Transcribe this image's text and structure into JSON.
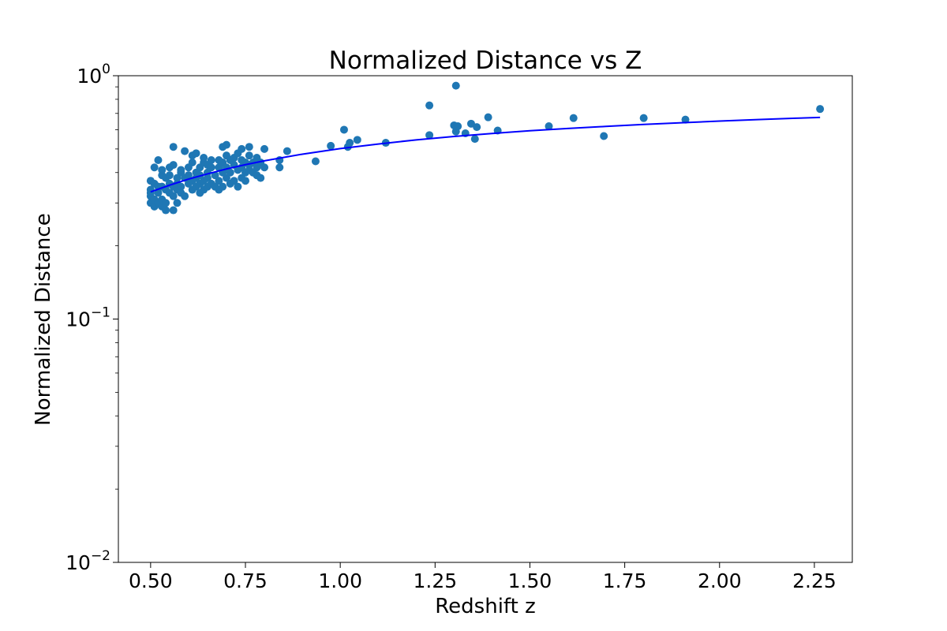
{
  "chart_data": {
    "type": "scatter",
    "title": "Normalized Distance vs Z",
    "xlabel": "Redshift z",
    "ylabel": "Normalized Distance",
    "xlim": [
      0.415,
      2.35
    ],
    "ylim": [
      0.01,
      1.0
    ],
    "y_scale": "log",
    "grid": false,
    "x_ticks": [
      0.5,
      0.75,
      1.0,
      1.25,
      1.5,
      1.75,
      2.0,
      2.25
    ],
    "x_tick_labels": [
      "0.50",
      "0.75",
      "1.00",
      "1.25",
      "1.50",
      "1.75",
      "2.00",
      "2.25"
    ],
    "y_ticks": [
      {
        "value": 1.0,
        "base": "10",
        "exp": "0"
      },
      {
        "value": 0.1,
        "base": "10",
        "exp": "−1"
      },
      {
        "value": 0.01,
        "base": "10",
        "exp": "−2"
      }
    ],
    "y_minor_ticks": [
      0.02,
      0.03,
      0.04,
      0.05,
      0.06,
      0.07,
      0.08,
      0.09,
      0.2,
      0.3,
      0.4,
      0.5,
      0.6,
      0.7,
      0.8,
      0.9
    ],
    "series": [
      {
        "kind": "scatter",
        "color": "#1f77b4",
        "points": [
          [
            0.5,
            0.37
          ],
          [
            0.5,
            0.34
          ],
          [
            0.5,
            0.32
          ],
          [
            0.5,
            0.3
          ],
          [
            0.5,
            0.33
          ],
          [
            0.51,
            0.29
          ],
          [
            0.51,
            0.31
          ],
          [
            0.51,
            0.36
          ],
          [
            0.51,
            0.42
          ],
          [
            0.52,
            0.45
          ],
          [
            0.52,
            0.3
          ],
          [
            0.52,
            0.35
          ],
          [
            0.52,
            0.33
          ],
          [
            0.53,
            0.31
          ],
          [
            0.53,
            0.29
          ],
          [
            0.53,
            0.39
          ],
          [
            0.53,
            0.35
          ],
          [
            0.53,
            0.41
          ],
          [
            0.54,
            0.28
          ],
          [
            0.54,
            0.38
          ],
          [
            0.54,
            0.34
          ],
          [
            0.54,
            0.3
          ],
          [
            0.55,
            0.33
          ],
          [
            0.55,
            0.36
          ],
          [
            0.55,
            0.42
          ],
          [
            0.55,
            0.39
          ],
          [
            0.56,
            0.28
          ],
          [
            0.56,
            0.32
          ],
          [
            0.56,
            0.35
          ],
          [
            0.56,
            0.51
          ],
          [
            0.56,
            0.43
          ],
          [
            0.57,
            0.3
          ],
          [
            0.57,
            0.34
          ],
          [
            0.57,
            0.38
          ],
          [
            0.57,
            0.36
          ],
          [
            0.58,
            0.33
          ],
          [
            0.58,
            0.4
          ],
          [
            0.58,
            0.35
          ],
          [
            0.58,
            0.41
          ],
          [
            0.59,
            0.38
          ],
          [
            0.59,
            0.32
          ],
          [
            0.59,
            0.49
          ],
          [
            0.6,
            0.36
          ],
          [
            0.6,
            0.39
          ],
          [
            0.6,
            0.42
          ],
          [
            0.61,
            0.34
          ],
          [
            0.61,
            0.37
          ],
          [
            0.61,
            0.44
          ],
          [
            0.61,
            0.47
          ],
          [
            0.62,
            0.35
          ],
          [
            0.62,
            0.38
          ],
          [
            0.62,
            0.4
          ],
          [
            0.62,
            0.48
          ],
          [
            0.63,
            0.33
          ],
          [
            0.63,
            0.36
          ],
          [
            0.63,
            0.42
          ],
          [
            0.63,
            0.39
          ],
          [
            0.64,
            0.34
          ],
          [
            0.64,
            0.37
          ],
          [
            0.64,
            0.44
          ],
          [
            0.64,
            0.46
          ],
          [
            0.65,
            0.35
          ],
          [
            0.65,
            0.4
          ],
          [
            0.65,
            0.43
          ],
          [
            0.65,
            0.38
          ],
          [
            0.66,
            0.36
          ],
          [
            0.66,
            0.42
          ],
          [
            0.66,
            0.45
          ],
          [
            0.67,
            0.35
          ],
          [
            0.67,
            0.39
          ],
          [
            0.68,
            0.34
          ],
          [
            0.68,
            0.37
          ],
          [
            0.68,
            0.42
          ],
          [
            0.68,
            0.45
          ],
          [
            0.69,
            0.35
          ],
          [
            0.69,
            0.4
          ],
          [
            0.69,
            0.51
          ],
          [
            0.69,
            0.44
          ],
          [
            0.7,
            0.38
          ],
          [
            0.7,
            0.47
          ],
          [
            0.7,
            0.52
          ],
          [
            0.7,
            0.42
          ],
          [
            0.71,
            0.36
          ],
          [
            0.71,
            0.45
          ],
          [
            0.71,
            0.4
          ],
          [
            0.72,
            0.37
          ],
          [
            0.72,
            0.43
          ],
          [
            0.72,
            0.46
          ],
          [
            0.73,
            0.35
          ],
          [
            0.73,
            0.41
          ],
          [
            0.73,
            0.48
          ],
          [
            0.74,
            0.38
          ],
          [
            0.74,
            0.42
          ],
          [
            0.74,
            0.5
          ],
          [
            0.74,
            0.45
          ],
          [
            0.75,
            0.4
          ],
          [
            0.75,
            0.37
          ],
          [
            0.75,
            0.44
          ],
          [
            0.76,
            0.43
          ],
          [
            0.76,
            0.47
          ],
          [
            0.76,
            0.41
          ],
          [
            0.76,
            0.51
          ],
          [
            0.77,
            0.4
          ],
          [
            0.77,
            0.44
          ],
          [
            0.78,
            0.39
          ],
          [
            0.78,
            0.42
          ],
          [
            0.78,
            0.46
          ],
          [
            0.79,
            0.38
          ],
          [
            0.79,
            0.44
          ],
          [
            0.8,
            0.42
          ],
          [
            0.8,
            0.5
          ],
          [
            0.84,
            0.42
          ],
          [
            0.84,
            0.45
          ],
          [
            0.86,
            0.49
          ],
          [
            0.935,
            0.445
          ],
          [
            0.975,
            0.515
          ],
          [
            1.01,
            0.6
          ],
          [
            1.02,
            0.51
          ],
          [
            1.025,
            0.53
          ],
          [
            1.045,
            0.545
          ],
          [
            1.12,
            0.53
          ],
          [
            1.235,
            0.755
          ],
          [
            1.235,
            0.57
          ],
          [
            1.3,
            0.625
          ],
          [
            1.305,
            0.59
          ],
          [
            1.305,
            0.91
          ],
          [
            1.31,
            0.62
          ],
          [
            1.33,
            0.58
          ],
          [
            1.345,
            0.635
          ],
          [
            1.355,
            0.55
          ],
          [
            1.36,
            0.615
          ],
          [
            1.39,
            0.675
          ],
          [
            1.415,
            0.595
          ],
          [
            1.55,
            0.62
          ],
          [
            1.615,
            0.67
          ],
          [
            1.695,
            0.565
          ],
          [
            1.8,
            0.67
          ],
          [
            1.91,
            0.66
          ],
          [
            2.265,
            0.73
          ]
        ]
      },
      {
        "kind": "line",
        "color": "#0000ff",
        "points": [
          [
            0.5,
            0.333
          ],
          [
            0.55,
            0.355
          ],
          [
            0.6,
            0.376
          ],
          [
            0.65,
            0.395
          ],
          [
            0.7,
            0.414
          ],
          [
            0.75,
            0.431
          ],
          [
            0.8,
            0.447
          ],
          [
            0.9,
            0.476
          ],
          [
            1.0,
            0.502
          ],
          [
            1.1,
            0.524
          ],
          [
            1.2,
            0.545
          ],
          [
            1.3,
            0.563
          ],
          [
            1.4,
            0.579
          ],
          [
            1.5,
            0.594
          ],
          [
            1.6,
            0.607
          ],
          [
            1.7,
            0.619
          ],
          [
            1.8,
            0.631
          ],
          [
            1.9,
            0.641
          ],
          [
            2.0,
            0.651
          ],
          [
            2.1,
            0.66
          ],
          [
            2.2,
            0.669
          ],
          [
            2.265,
            0.674
          ]
        ]
      }
    ]
  }
}
